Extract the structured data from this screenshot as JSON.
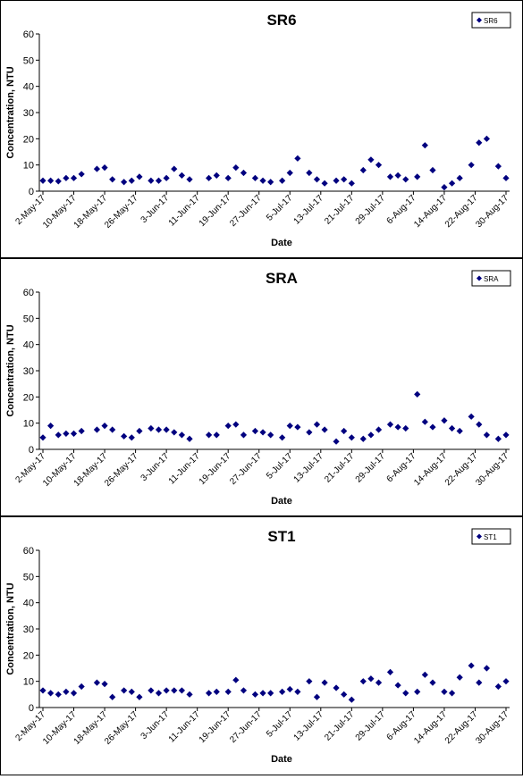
{
  "chart_data": [
    {
      "type": "scatter",
      "title": "SR6",
      "xlabel": "Date",
      "ylabel": "Concentration, NTU",
      "ylim": [
        0,
        60
      ],
      "yticks": [
        0,
        10,
        20,
        30,
        40,
        50,
        60
      ],
      "xlim": [
        "2017-05-02",
        "2017-08-30"
      ],
      "xtick_labels": [
        "2-May-17",
        "10-May-17",
        "18-May-17",
        "26-May-17",
        "3-Jun-17",
        "11-Jun-17",
        "19-Jun-17",
        "27-Jun-17",
        "5-Jul-17",
        "13-Jul-17",
        "21-Jul-17",
        "29-Jul-17",
        "6-Aug-17",
        "14-Aug-17",
        "22-Aug-17",
        "30-Aug-17"
      ],
      "grid": false,
      "legend_position": "top-right",
      "marker_color": "#00007f",
      "series": [
        {
          "name": "SR6",
          "x": [
            "2017-05-02",
            "2017-05-04",
            "2017-05-06",
            "2017-05-08",
            "2017-05-10",
            "2017-05-12",
            "2017-05-16",
            "2017-05-18",
            "2017-05-20",
            "2017-05-23",
            "2017-05-25",
            "2017-05-27",
            "2017-05-30",
            "2017-06-01",
            "2017-06-03",
            "2017-06-05",
            "2017-06-07",
            "2017-06-09",
            "2017-06-14",
            "2017-06-16",
            "2017-06-19",
            "2017-06-21",
            "2017-06-23",
            "2017-06-26",
            "2017-06-28",
            "2017-06-30",
            "2017-07-03",
            "2017-07-05",
            "2017-07-07",
            "2017-07-10",
            "2017-07-12",
            "2017-07-14",
            "2017-07-17",
            "2017-07-19",
            "2017-07-21",
            "2017-07-24",
            "2017-07-26",
            "2017-07-28",
            "2017-07-31",
            "2017-08-02",
            "2017-08-04",
            "2017-08-07",
            "2017-08-09",
            "2017-08-11",
            "2017-08-14",
            "2017-08-16",
            "2017-08-18",
            "2017-08-21",
            "2017-08-23",
            "2017-08-25",
            "2017-08-28",
            "2017-08-30"
          ],
          "y": [
            4.0,
            4.0,
            3.8,
            5.0,
            5.0,
            6.5,
            8.5,
            9.0,
            4.5,
            3.5,
            4.0,
            5.5,
            4.0,
            4.0,
            5.0,
            8.5,
            6.0,
            4.5,
            5.0,
            6.0,
            5.0,
            9.0,
            7.0,
            5.0,
            4.0,
            3.5,
            4.0,
            7.0,
            12.5,
            7.0,
            4.5,
            3.0,
            4.0,
            4.5,
            3.0,
            8.0,
            12.0,
            10.0,
            5.5,
            6.0,
            4.5,
            5.5,
            17.5,
            8.0,
            1.5,
            3.0,
            5.0,
            10.0,
            18.5,
            20.0,
            9.5,
            5.0
          ]
        }
      ]
    },
    {
      "type": "scatter",
      "title": "SRA",
      "xlabel": "Date",
      "ylabel": "Concentration, NTU",
      "ylim": [
        0,
        60
      ],
      "yticks": [
        0,
        10,
        20,
        30,
        40,
        50,
        60
      ],
      "xlim": [
        "2017-05-02",
        "2017-08-30"
      ],
      "xtick_labels": [
        "2-May-17",
        "10-May-17",
        "18-May-17",
        "26-May-17",
        "3-Jun-17",
        "11-Jun-17",
        "19-Jun-17",
        "27-Jun-17",
        "5-Jul-17",
        "13-Jul-17",
        "21-Jul-17",
        "29-Jul-17",
        "6-Aug-17",
        "14-Aug-17",
        "22-Aug-17",
        "30-Aug-17"
      ],
      "grid": false,
      "legend_position": "top-right",
      "marker_color": "#00007f",
      "series": [
        {
          "name": "SRA",
          "x": [
            "2017-05-02",
            "2017-05-04",
            "2017-05-06",
            "2017-05-08",
            "2017-05-10",
            "2017-05-12",
            "2017-05-16",
            "2017-05-18",
            "2017-05-20",
            "2017-05-23",
            "2017-05-25",
            "2017-05-27",
            "2017-05-30",
            "2017-06-01",
            "2017-06-03",
            "2017-06-05",
            "2017-06-07",
            "2017-06-09",
            "2017-06-14",
            "2017-06-16",
            "2017-06-19",
            "2017-06-21",
            "2017-06-23",
            "2017-06-26",
            "2017-06-28",
            "2017-06-30",
            "2017-07-03",
            "2017-07-05",
            "2017-07-07",
            "2017-07-10",
            "2017-07-12",
            "2017-07-14",
            "2017-07-17",
            "2017-07-19",
            "2017-07-21",
            "2017-07-24",
            "2017-07-26",
            "2017-07-28",
            "2017-07-31",
            "2017-08-02",
            "2017-08-04",
            "2017-08-07",
            "2017-08-09",
            "2017-08-11",
            "2017-08-14",
            "2017-08-16",
            "2017-08-18",
            "2017-08-21",
            "2017-08-23",
            "2017-08-25",
            "2017-08-28",
            "2017-08-30"
          ],
          "y": [
            4.5,
            9.0,
            5.5,
            6.0,
            6.0,
            7.0,
            7.5,
            9.0,
            7.5,
            5.0,
            4.5,
            7.0,
            8.0,
            7.5,
            7.5,
            6.5,
            5.5,
            4.0,
            5.5,
            5.5,
            9.0,
            9.5,
            5.5,
            7.0,
            6.5,
            5.5,
            4.5,
            9.0,
            8.5,
            6.5,
            9.5,
            7.5,
            3.0,
            7.0,
            4.5,
            4.0,
            5.5,
            7.5,
            9.5,
            8.5,
            8.0,
            21.0,
            10.5,
            8.5,
            11.0,
            8.0,
            7.0,
            12.5,
            9.5,
            5.5,
            4.0,
            5.5
          ]
        }
      ]
    },
    {
      "type": "scatter",
      "title": "ST1",
      "xlabel": "Date",
      "ylabel": "Concentration, NTU",
      "ylim": [
        0,
        60
      ],
      "yticks": [
        0,
        10,
        20,
        30,
        40,
        50,
        60
      ],
      "xlim": [
        "2017-05-02",
        "2017-08-30"
      ],
      "xtick_labels": [
        "2-May-17",
        "10-May-17",
        "18-May-17",
        "26-May-17",
        "3-Jun-17",
        "11-Jun-17",
        "19-Jun-17",
        "27-Jun-17",
        "5-Jul-17",
        "13-Jul-17",
        "21-Jul-17",
        "29-Jul-17",
        "6-Aug-17",
        "14-Aug-17",
        "22-Aug-17",
        "30-Aug-17"
      ],
      "grid": false,
      "legend_position": "top-right",
      "marker_color": "#00007f",
      "series": [
        {
          "name": "ST1",
          "x": [
            "2017-05-02",
            "2017-05-04",
            "2017-05-06",
            "2017-05-08",
            "2017-05-10",
            "2017-05-12",
            "2017-05-16",
            "2017-05-18",
            "2017-05-20",
            "2017-05-23",
            "2017-05-25",
            "2017-05-27",
            "2017-05-30",
            "2017-06-01",
            "2017-06-03",
            "2017-06-05",
            "2017-06-07",
            "2017-06-09",
            "2017-06-14",
            "2017-06-16",
            "2017-06-19",
            "2017-06-21",
            "2017-06-23",
            "2017-06-26",
            "2017-06-28",
            "2017-06-30",
            "2017-07-03",
            "2017-07-05",
            "2017-07-07",
            "2017-07-10",
            "2017-07-12",
            "2017-07-14",
            "2017-07-17",
            "2017-07-19",
            "2017-07-21",
            "2017-07-24",
            "2017-07-26",
            "2017-07-28",
            "2017-07-31",
            "2017-08-02",
            "2017-08-04",
            "2017-08-07",
            "2017-08-09",
            "2017-08-11",
            "2017-08-14",
            "2017-08-16",
            "2017-08-18",
            "2017-08-21",
            "2017-08-23",
            "2017-08-25",
            "2017-08-28",
            "2017-08-30"
          ],
          "y": [
            6.5,
            5.5,
            5.0,
            6.0,
            5.5,
            8.0,
            9.5,
            9.0,
            4.0,
            6.5,
            6.0,
            4.0,
            6.5,
            5.5,
            6.5,
            6.5,
            6.5,
            5.0,
            5.5,
            6.0,
            6.0,
            10.5,
            6.5,
            5.0,
            5.5,
            5.5,
            6.0,
            7.0,
            6.0,
            10.0,
            4.0,
            9.5,
            7.5,
            5.0,
            3.0,
            10.0,
            11.0,
            9.5,
            13.5,
            8.5,
            5.5,
            6.0,
            12.5,
            9.5,
            6.0,
            5.5,
            11.5,
            16.0,
            9.5,
            15.0,
            8.0,
            10.0
          ]
        }
      ]
    }
  ]
}
